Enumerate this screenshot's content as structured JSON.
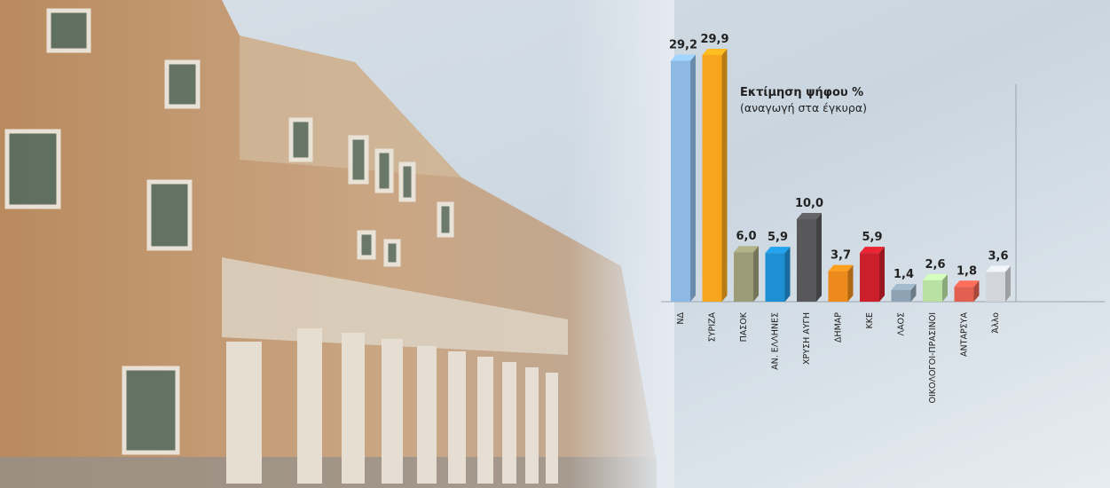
{
  "chart_data": {
    "type": "bar",
    "title": "Εκτίμηση ψήφου %",
    "subtitle": "(αναγωγή στα έγκυρα)",
    "categories": [
      "ΝΔ",
      "ΣΥΡΙΖΑ",
      "ΠΑΣΟΚ",
      "ΑΝ. ΕΛΛΗΝΕΣ",
      "ΧΡΥΣΗ ΑΥΓΗ",
      "ΔΗΜΑΡ",
      "ΚΚΕ",
      "ΛΑΟΣ",
      "ΟΙΚΟΛΟΓΟΙ-ΠΡΑΣΙΝΟΙ",
      "ΑΝΤΑΡΣΥΑ",
      "Άλλο"
    ],
    "values": [
      29.2,
      29.9,
      6.0,
      5.9,
      10.0,
      3.7,
      5.9,
      1.4,
      2.6,
      1.8,
      3.6
    ],
    "value_labels": [
      "29,2",
      "29,9",
      "6,0",
      "5,9",
      "10,0",
      "3,7",
      "5,9",
      "1,4",
      "2,6",
      "1,8",
      "3,6"
    ],
    "colors": [
      "#8db9e4",
      "#f7a51c",
      "#9c9c78",
      "#1e8fd2",
      "#58585a",
      "#ec8a1c",
      "#cc1f2c",
      "#8ea2b4",
      "#b9e1a4",
      "#e2604f",
      "#d2d6da"
    ]
  }
}
